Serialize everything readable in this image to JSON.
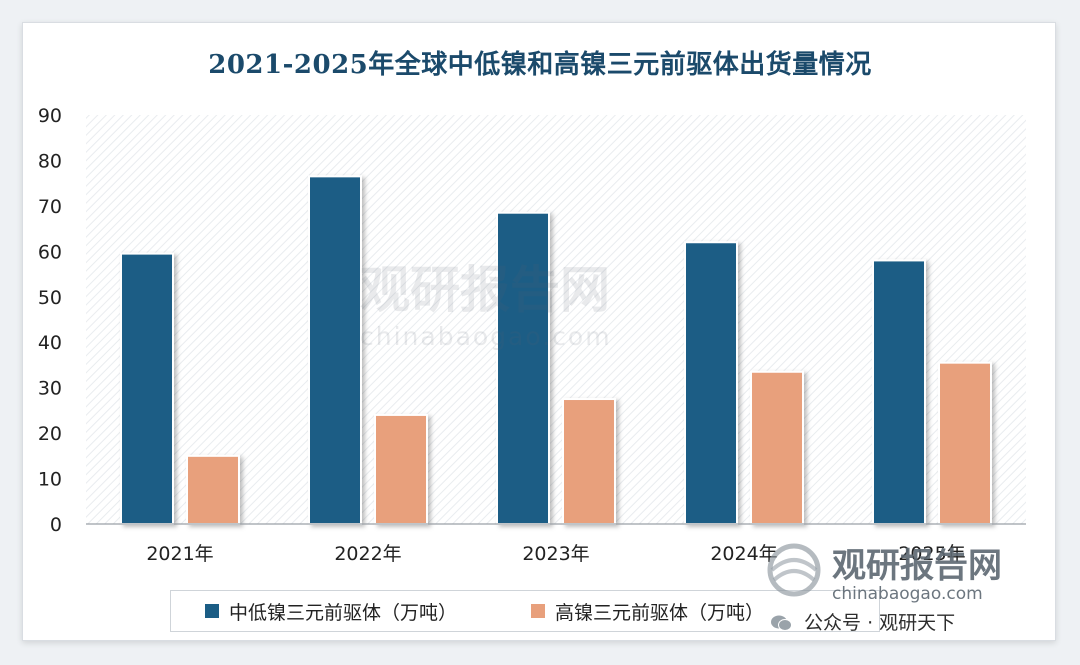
{
  "chart_data": {
    "type": "bar",
    "title": "2021-2025年全球中低镍和高镍三元前驱体出货量情况",
    "categories": [
      "2021年",
      "2022年",
      "2023年",
      "2024年",
      "2025年"
    ],
    "series": [
      {
        "name": "中低镍三元前驱体（万吨）",
        "color": "#1b5d85",
        "values": [
          59.5,
          76.5,
          68.5,
          62,
          58
        ]
      },
      {
        "name": "高镍三元前驱体（万吨）",
        "color": "#e8a07c",
        "values": [
          15,
          24,
          27.5,
          33.5,
          35.5
        ]
      }
    ],
    "ylim": [
      0,
      90
    ],
    "yticks": [
      0,
      10,
      20,
      30,
      40,
      50,
      60,
      70,
      80,
      90
    ],
    "xlabel": "",
    "ylabel": "",
    "grid": false,
    "legend": "bottom"
  },
  "watermark": {
    "brand": "观研报告网",
    "url": "chinabaogao.com",
    "wechat": "公众号 · 观研天下"
  }
}
